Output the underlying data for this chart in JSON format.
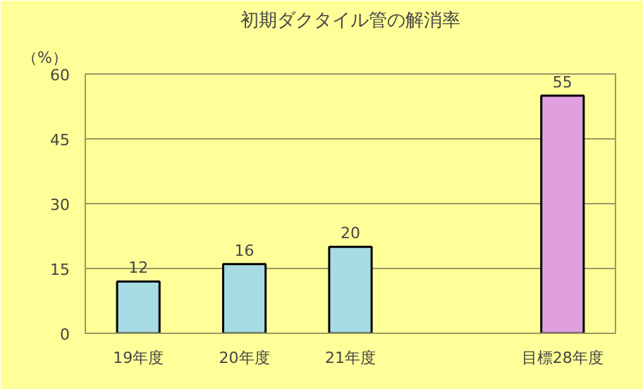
{
  "chart_data": {
    "type": "bar",
    "title": "初期ダクタイル管の解消率",
    "ylabel": "（%）",
    "categories": [
      "19年度",
      "20年度",
      "21年度",
      null,
      "目標28年度"
    ],
    "values": [
      12,
      16,
      20,
      null,
      55
    ],
    "colors": [
      "#a8dce4",
      "#a8dce4",
      "#a8dce4",
      null,
      "#e0a0e0"
    ],
    "ylim": [
      0,
      60
    ],
    "yticks": [
      0,
      15,
      30,
      45,
      60
    ],
    "grid": "y",
    "data_labels": true
  }
}
